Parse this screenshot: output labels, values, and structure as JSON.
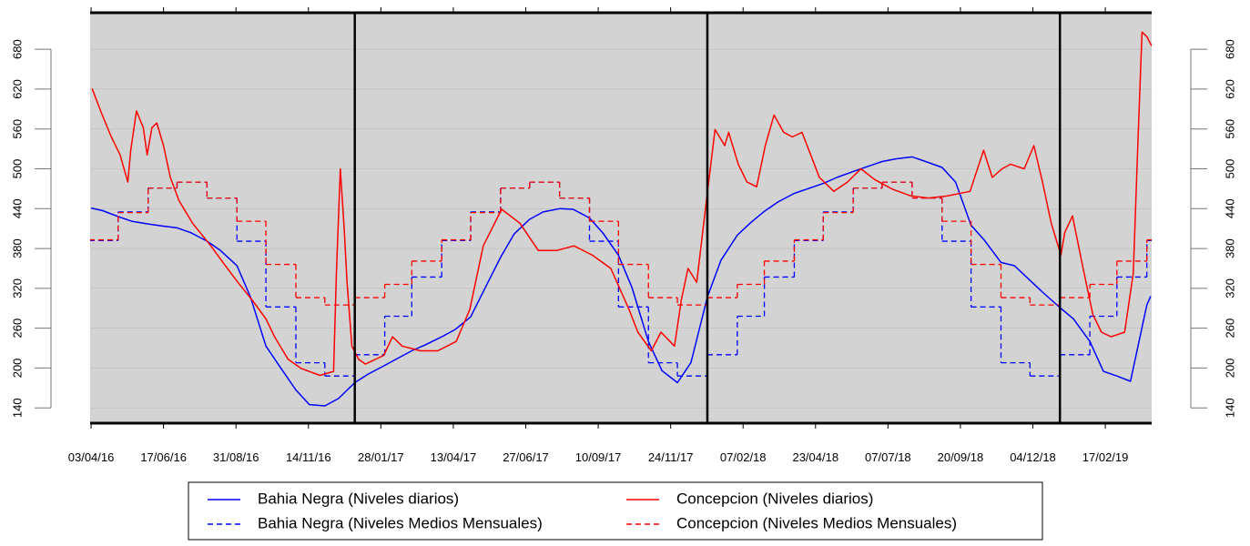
{
  "chart_data": {
    "type": "line",
    "xlim": [
      "2016-04-02",
      "2019-04-06"
    ],
    "ylim": [
      117,
      735
    ],
    "yticks": [
      140,
      200,
      260,
      320,
      380,
      440,
      500,
      560,
      620,
      680
    ],
    "right_axis": true,
    "plot_background": "#d3d3d3",
    "xticks": [
      {
        "value": "2016-04-03",
        "label": "03/04/16"
      },
      {
        "value": "2016-06-17",
        "label": "17/06/16"
      },
      {
        "value": "2016-08-31",
        "label": "31/08/16"
      },
      {
        "value": "2016-11-14",
        "label": "14/11/16"
      },
      {
        "value": "2017-01-28",
        "label": "28/01/17"
      },
      {
        "value": "2017-04-13",
        "label": "13/04/17"
      },
      {
        "value": "2017-06-27",
        "label": "27/06/17"
      },
      {
        "value": "2017-09-10",
        "label": "10/09/17"
      },
      {
        "value": "2017-11-24",
        "label": "24/11/17"
      },
      {
        "value": "2018-02-07",
        "label": "07/02/18"
      },
      {
        "value": "2018-04-23",
        "label": "23/04/18"
      },
      {
        "value": "2018-07-07",
        "label": "07/07/18"
      },
      {
        "value": "2018-09-20",
        "label": "20/09/18"
      },
      {
        "value": "2018-12-04",
        "label": "04/12/18"
      },
      {
        "value": "2019-02-17",
        "label": "17/02/19"
      }
    ],
    "vlines": [
      "2017-01-01",
      "2018-01-01",
      "2019-01-01"
    ],
    "series": [
      {
        "name": "Bahia Negra (Niveles diarios)",
        "color": "#0000ff",
        "linestyle": "solid",
        "step": false,
        "x": [
          "2016-04-03",
          "2016-04-15",
          "2016-05-01",
          "2016-05-15",
          "2016-06-01",
          "2016-06-15",
          "2016-07-01",
          "2016-07-15",
          "2016-08-01",
          "2016-08-15",
          "2016-09-01",
          "2016-09-15",
          "2016-10-01",
          "2016-10-15",
          "2016-11-01",
          "2016-11-15",
          "2016-12-01",
          "2016-12-15",
          "2017-01-01",
          "2017-01-15",
          "2017-02-01",
          "2017-02-15",
          "2017-03-01",
          "2017-03-15",
          "2017-04-01",
          "2017-04-15",
          "2017-05-01",
          "2017-05-15",
          "2017-06-01",
          "2017-06-15",
          "2017-07-01",
          "2017-07-15",
          "2017-08-01",
          "2017-08-15",
          "2017-09-01",
          "2017-09-15",
          "2017-10-01",
          "2017-10-15",
          "2017-11-01",
          "2017-11-15",
          "2017-12-01",
          "2017-12-15",
          "2018-01-01",
          "2018-01-15",
          "2018-02-01",
          "2018-02-15",
          "2018-03-01",
          "2018-03-15",
          "2018-04-01",
          "2018-04-15",
          "2018-05-01",
          "2018-05-15",
          "2018-06-01",
          "2018-06-15",
          "2018-07-01",
          "2018-07-15",
          "2018-08-01",
          "2018-08-15",
          "2018-09-01",
          "2018-09-15",
          "2018-10-01",
          "2018-10-15",
          "2018-11-01",
          "2018-11-15",
          "2018-12-01",
          "2018-12-15",
          "2019-01-01",
          "2019-01-15",
          "2019-02-01",
          "2019-02-15",
          "2019-03-01",
          "2019-03-15",
          "2019-04-01",
          "2019-04-05"
        ],
        "values": [
          441,
          437,
          428,
          421,
          417,
          414,
          411,
          404,
          391,
          377,
          354,
          307,
          233,
          203,
          167,
          145,
          143,
          154,
          178,
          191,
          204,
          215,
          226,
          235,
          247,
          258,
          277,
          318,
          367,
          402,
          424,
          435,
          440,
          439,
          426,
          403,
          370,
          321,
          240,
          196,
          178,
          208,
          307,
          362,
          400,
          419,
          436,
          450,
          463,
          470,
          478,
          487,
          496,
          503,
          511,
          515,
          518,
          511,
          502,
          480,
          415,
          392,
          359,
          354,
          332,
          313,
          291,
          274,
          240,
          195,
          188,
          180,
          295,
          308
        ]
      },
      {
        "name": "Bahia Negra (Niveles Medios Mensuales)",
        "color": "#0000ff",
        "linestyle": "dashed",
        "step": true,
        "x": [
          "2016-04-01",
          "2016-05-01",
          "2016-06-01",
          "2016-07-01",
          "2016-08-01",
          "2016-09-01",
          "2016-10-01",
          "2016-11-01",
          "2016-12-01",
          "2017-01-01",
          "2017-02-01",
          "2017-03-01",
          "2017-04-01",
          "2017-05-01",
          "2017-06-01",
          "2017-07-01",
          "2017-08-01",
          "2017-09-01",
          "2017-10-01",
          "2017-11-01",
          "2017-12-01",
          "2018-01-01",
          "2018-02-01",
          "2018-03-01",
          "2018-04-01",
          "2018-05-01",
          "2018-06-01",
          "2018-07-01",
          "2018-08-01",
          "2018-09-01",
          "2018-10-01",
          "2018-11-01",
          "2018-12-01",
          "2019-01-01",
          "2019-02-01",
          "2019-03-01",
          "2019-04-01"
        ],
        "values": [
          392,
          435,
          471,
          480,
          456,
          391,
          292,
          208,
          188,
          220,
          278,
          337,
          392,
          435,
          471,
          480,
          456,
          391,
          292,
          208,
          188,
          220,
          278,
          337,
          392,
          435,
          471,
          480,
          456,
          391,
          292,
          208,
          188,
          220,
          278,
          337,
          392
        ]
      },
      {
        "name": "Concepcion (Niveles diarios)",
        "color": "#ff0000",
        "linestyle": "solid",
        "step": false,
        "x": [
          "2016-04-04",
          "2016-04-14",
          "2016-04-24",
          "2016-05-03",
          "2016-05-11",
          "2016-05-14",
          "2016-05-20",
          "2016-05-27",
          "2016-05-31",
          "2016-06-05",
          "2016-06-10",
          "2016-06-17",
          "2016-06-24",
          "2016-07-03",
          "2016-07-17",
          "2016-08-05",
          "2016-08-19",
          "2016-09-02",
          "2016-09-17",
          "2016-10-01",
          "2016-10-10",
          "2016-10-24",
          "2016-11-07",
          "2016-11-26",
          "2016-12-10",
          "2016-12-13",
          "2016-12-17",
          "2016-12-21",
          "2016-12-24",
          "2016-12-29",
          "2017-01-05",
          "2017-01-12",
          "2017-01-31",
          "2017-02-09",
          "2017-02-19",
          "2017-03-10",
          "2017-03-28",
          "2017-04-16",
          "2017-04-30",
          "2017-05-14",
          "2017-06-02",
          "2017-06-21",
          "2017-07-10",
          "2017-07-29",
          "2017-08-16",
          "2017-09-04",
          "2017-09-23",
          "2017-10-12",
          "2017-10-21",
          "2017-11-04",
          "2017-11-14",
          "2017-11-28",
          "2017-12-05",
          "2017-12-12",
          "2017-12-21",
          "2017-12-31",
          "2018-01-09",
          "2018-01-19",
          "2018-01-23",
          "2018-02-02",
          "2018-02-11",
          "2018-02-21",
          "2018-03-02",
          "2018-03-11",
          "2018-03-21",
          "2018-03-30",
          "2018-04-09",
          "2018-04-18",
          "2018-04-27",
          "2018-05-12",
          "2018-05-26",
          "2018-06-09",
          "2018-06-23",
          "2018-07-12",
          "2018-07-31",
          "2018-08-18",
          "2018-09-06",
          "2018-09-30",
          "2018-10-14",
          "2018-10-23",
          "2018-11-02",
          "2018-11-11",
          "2018-11-25",
          "2018-12-05",
          "2018-12-14",
          "2018-12-23",
          "2019-01-02",
          "2019-01-06",
          "2019-01-14",
          "2019-01-25",
          "2019-02-04",
          "2019-02-13",
          "2019-02-23",
          "2019-03-09",
          "2019-03-18",
          "2019-03-23",
          "2019-03-27",
          "2019-04-01",
          "2019-04-06"
        ],
        "values": [
          621,
          583,
          548,
          521,
          480,
          528,
          587,
          562,
          521,
          562,
          569,
          535,
          487,
          452,
          418,
          384,
          356,
          329,
          302,
          274,
          247,
          213,
          199,
          189,
          195,
          343,
          500,
          411,
          329,
          233,
          213,
          206,
          219,
          247,
          233,
          226,
          226,
          240,
          288,
          384,
          439,
          418,
          377,
          377,
          384,
          370,
          350,
          288,
          254,
          226,
          254,
          233,
          302,
          350,
          329,
          452,
          559,
          535,
          555,
          507,
          480,
          473,
          535,
          581,
          555,
          548,
          555,
          521,
          487,
          466,
          480,
          500,
          484,
          469,
          459,
          456,
          459,
          466,
          528,
          487,
          500,
          507,
          500,
          535,
          480,
          418,
          370,
          404,
          429,
          350,
          281,
          254,
          247,
          254,
          343,
          548,
          706,
          699,
          685
        ]
      },
      {
        "name": "Concepcion (Niveles Medios Mensuales)",
        "color": "#ff0000",
        "linestyle": "dashed",
        "step": true,
        "x": [
          "2016-04-01",
          "2016-05-01",
          "2016-06-01",
          "2016-07-01",
          "2016-08-01",
          "2016-09-01",
          "2016-10-01",
          "2016-11-01",
          "2016-12-01",
          "2017-01-01",
          "2017-02-01",
          "2017-03-01",
          "2017-04-01",
          "2017-05-01",
          "2017-06-01",
          "2017-07-01",
          "2017-08-01",
          "2017-09-01",
          "2017-10-01",
          "2017-11-01",
          "2017-12-01",
          "2018-01-01",
          "2018-02-01",
          "2018-03-01",
          "2018-04-01",
          "2018-05-01",
          "2018-06-01",
          "2018-07-01",
          "2018-08-01",
          "2018-09-01",
          "2018-10-01",
          "2018-11-01",
          "2018-12-01",
          "2019-01-01",
          "2019-02-01",
          "2019-03-01",
          "2019-04-01"
        ],
        "values": [
          393,
          434,
          471,
          480,
          456,
          421,
          356,
          306,
          295,
          306,
          326,
          361,
          393,
          434,
          471,
          480,
          456,
          421,
          356,
          306,
          295,
          306,
          326,
          361,
          393,
          434,
          471,
          480,
          456,
          421,
          356,
          306,
          295,
          306,
          326,
          361,
          393
        ]
      }
    ]
  }
}
